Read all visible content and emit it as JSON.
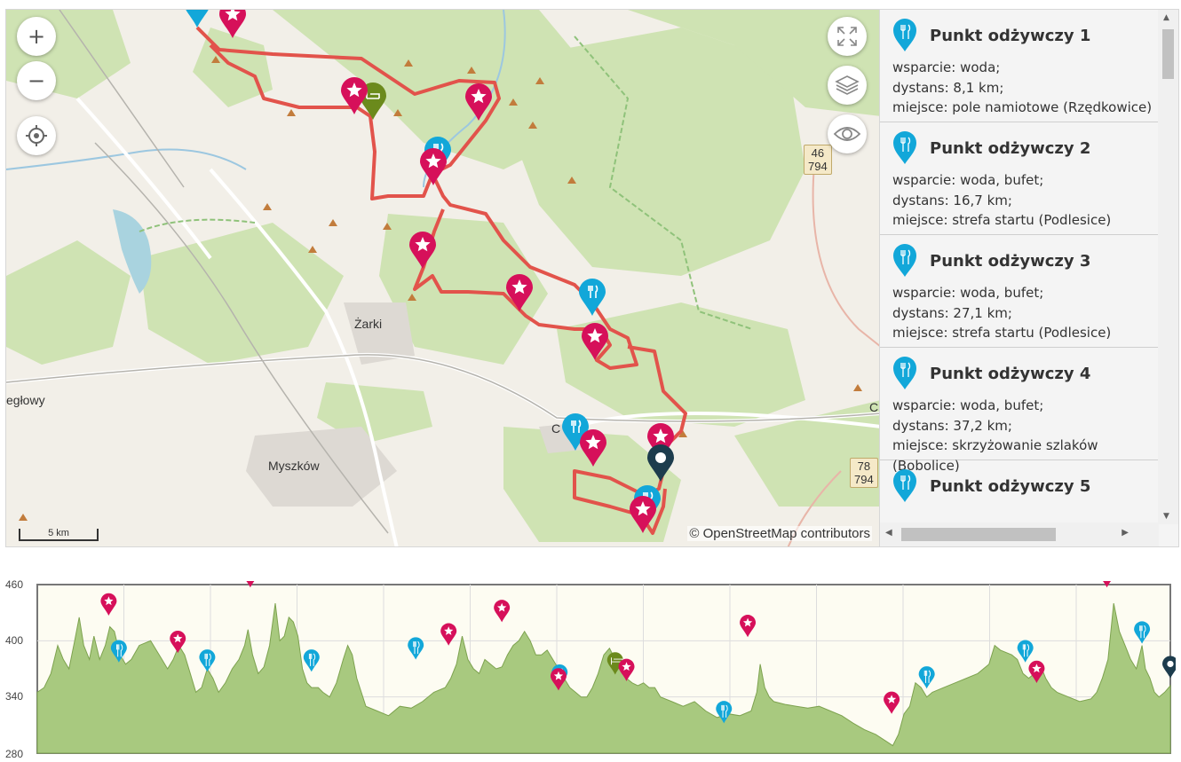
{
  "map": {
    "zoom_in": "+",
    "zoom_out": "−",
    "attribution": "© OpenStreetMap contributors",
    "scale_label": "5 km",
    "place_names": [
      {
        "name": "Żarki"
      },
      {
        "name": "Myszków"
      },
      {
        "name": "egłowy"
      },
      {
        "name": "C"
      },
      {
        "name": "C"
      }
    ],
    "road_badges": [
      {
        "top": "46",
        "bottom": "794"
      },
      {
        "top": "78",
        "bottom": "794"
      }
    ],
    "icons": {
      "fullscreen": "fullscreen-icon",
      "layers": "layers-icon",
      "visibility": "eye-icon",
      "locate": "locate-icon"
    },
    "colors": {
      "route": "#e2534b",
      "star_marker": "#d6105a",
      "food_marker": "#12a7d9",
      "camp_marker": "#6b8a1c",
      "finish_marker": "#1d3c4d"
    }
  },
  "panel": {
    "items": [
      {
        "title": "Punkt odżywczy 1",
        "support": "wsparcie: woda;",
        "distance": "dystans: 8,1 km;",
        "place": "miejsce: pole namiotowe (Rzędkowice)"
      },
      {
        "title": "Punkt odżywczy 2",
        "support": "wsparcie: woda, bufet;",
        "distance": "dystans: 16,7 km;",
        "place": "miejsce: strefa startu (Podlesice)"
      },
      {
        "title": "Punkt odżywczy 3",
        "support": "wsparcie: woda, bufet;",
        "distance": "dystans: 27,1 km;",
        "place": "miejsce: strefa startu (Podlesice)"
      },
      {
        "title": "Punkt odżywczy 4",
        "support": "wsparcie: woda, bufet;",
        "distance": "dystans: 37,2 km;",
        "place": "miejsce: skrzyżowanie szlaków (Bobolice)"
      },
      {
        "title": "Punkt odżywczy 5",
        "support": "",
        "distance": "",
        "place": ""
      }
    ]
  },
  "elevation": {
    "y_ticks": [
      "460",
      "400",
      "340",
      "280"
    ],
    "colors": {
      "fill": "#a8c97f",
      "line": "#7da24f",
      "background": "#fdfcf2"
    }
  }
}
